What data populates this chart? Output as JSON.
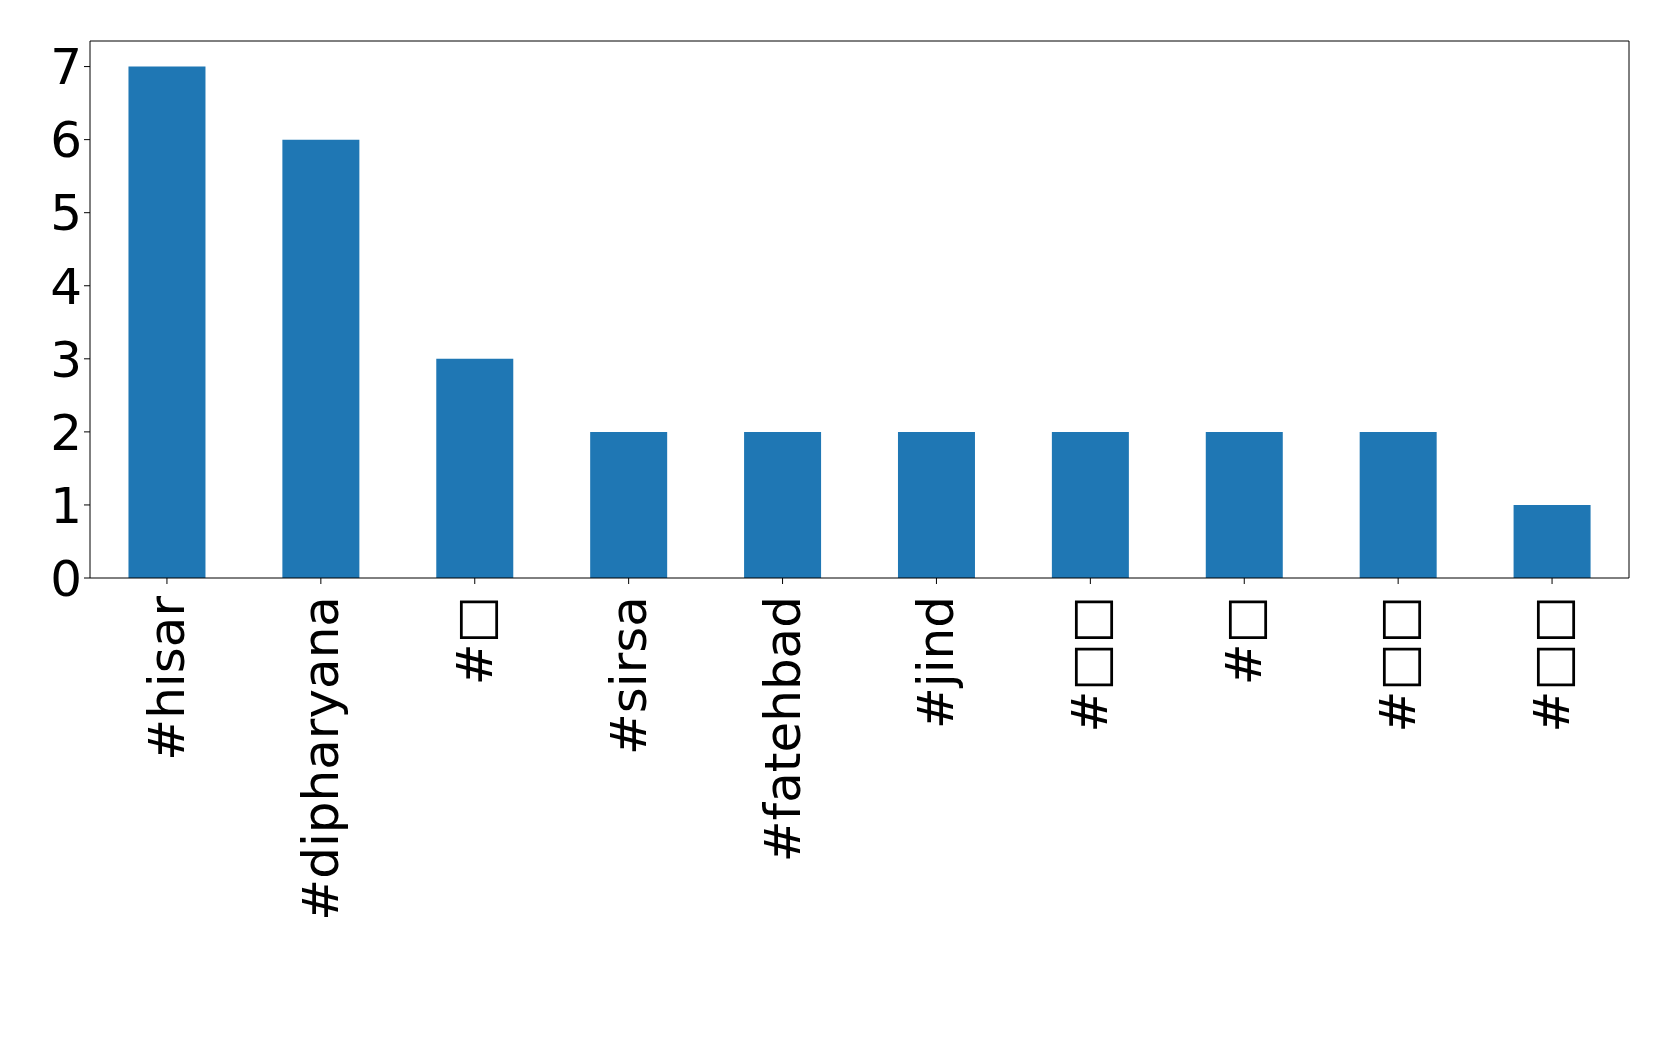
{
  "chart_data": {
    "type": "bar",
    "categories": [
      "#hisar",
      "#dipharyana",
      "#□",
      "#sirsa",
      "#fatehbad",
      "#jind",
      "#□□",
      "#□",
      "#□□",
      "#□□"
    ],
    "values": [
      7,
      6,
      3,
      2,
      2,
      2,
      2,
      2,
      2,
      1
    ],
    "color": "#1f77b4",
    "ylim": [
      0,
      7.35
    ],
    "yticks": [
      0,
      1,
      2,
      3,
      4,
      5,
      6,
      7
    ],
    "grid": false
  }
}
